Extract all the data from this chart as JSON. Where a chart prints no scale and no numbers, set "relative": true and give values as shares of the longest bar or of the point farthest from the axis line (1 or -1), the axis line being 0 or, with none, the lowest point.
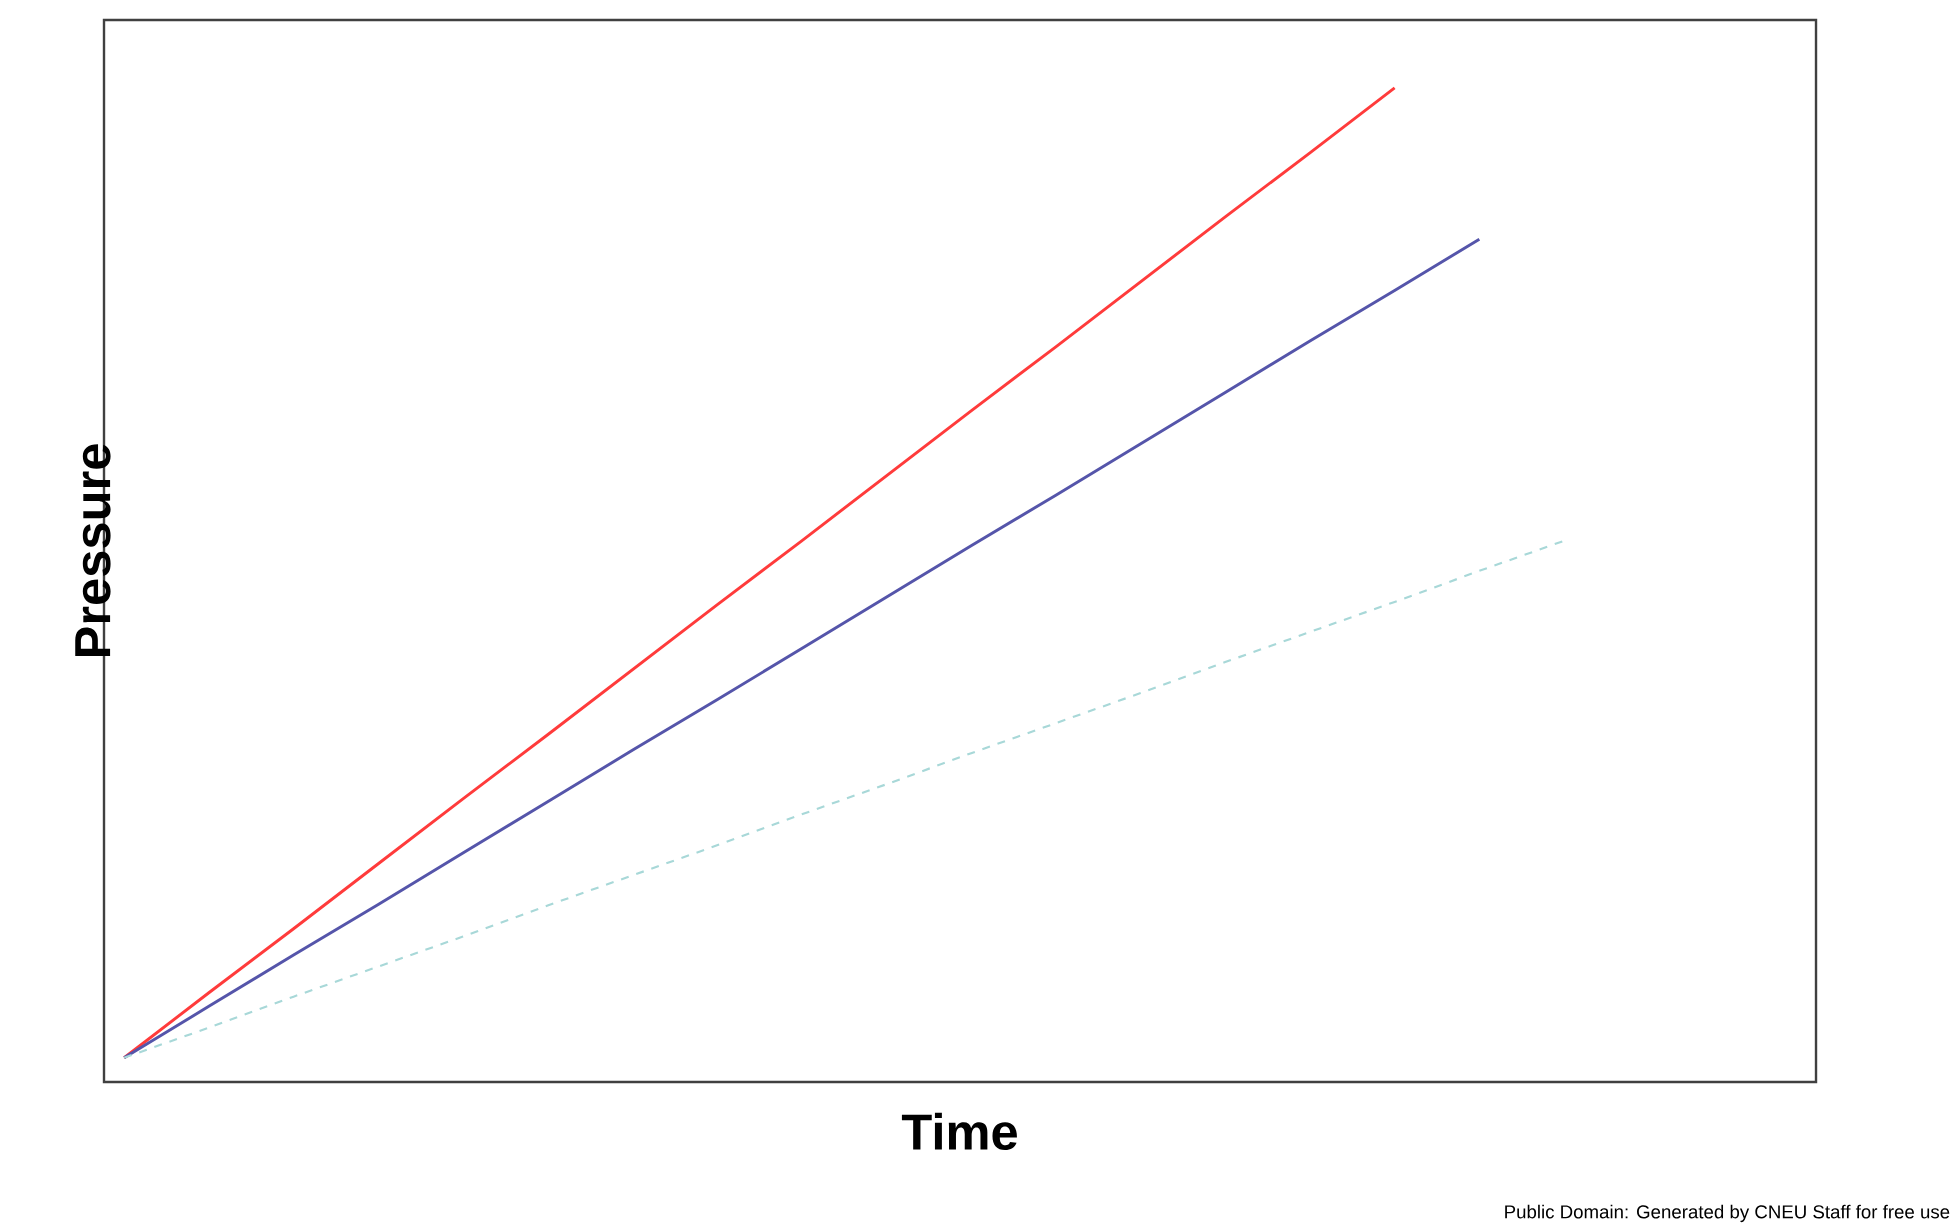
{
  "chart_data": {
    "type": "line",
    "relative": true,
    "xlabel": "Time",
    "ylabel": "Pressure",
    "annotations": [
      "Public Domain: Generated by CNEU Staff for free use"
    ],
    "categories": [
      null,
      null,
      null,
      null,
      null,
      null,
      null,
      null,
      null,
      null,
      null,
      null,
      null,
      null,
      null,
      null,
      null,
      null
    ],
    "series": [
      {
        "values": [
          0,
          0.067,
          0.133,
          0.2,
          0.267,
          0.333,
          0.4,
          0.467,
          0.533,
          0.6,
          0.667,
          0.733,
          0.8,
          0.867,
          0.933,
          1,
          null,
          null
        ],
        "color": "#ff3b3b",
        "line_style": "solid"
      },
      {
        "values": [
          0,
          0.053,
          0.106,
          0.158,
          0.211,
          0.264,
          0.317,
          0.369,
          0.422,
          0.475,
          0.528,
          0.58,
          0.633,
          0.686,
          0.739,
          0.791,
          0.844,
          null
        ],
        "color": "#5555aa",
        "line_style": "solid"
      },
      {
        "values": [
          0,
          0.031,
          0.063,
          0.094,
          0.125,
          0.157,
          0.188,
          0.219,
          0.251,
          0.282,
          0.314,
          0.345,
          0.376,
          0.408,
          0.439,
          0.47,
          0.502,
          0.533
        ],
        "color": "#a8d8d8",
        "line_style": "dashed"
      }
    ]
  }
}
